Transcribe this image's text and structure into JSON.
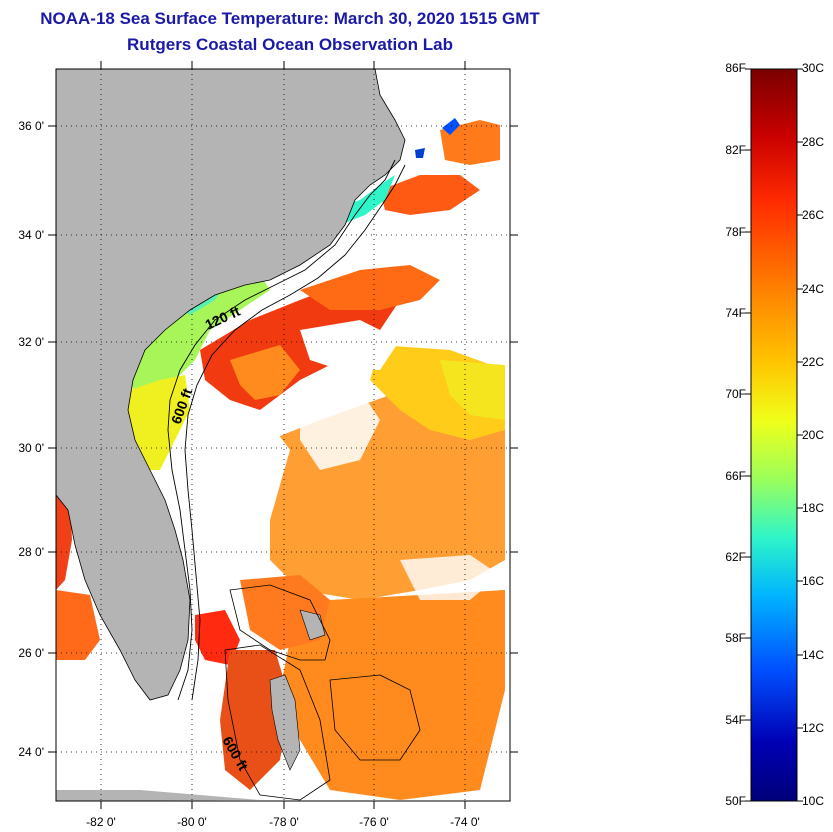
{
  "title": "NOAA-18 Sea Surface Temperature:  March 30, 2020 1515 GMT",
  "subtitle": "Rutgers Coastal Ocean Observation Lab",
  "map": {
    "lat_labels": [
      "36 0'",
      "34 0'",
      "32 0'",
      "30 0'",
      "28 0'",
      "26 0'",
      "24 0'"
    ],
    "lon_labels": [
      "-82 0'",
      "-80 0'",
      "-78 0'",
      "-76 0'",
      "-74 0'"
    ],
    "contour_labels": [
      "120 ft",
      "600 ft",
      "600 ft"
    ],
    "land_color": "#b4b4b4",
    "no_data_color": "#ffffff"
  },
  "colorbar": {
    "fahrenheit_labels": [
      "86F",
      "82F",
      "78F",
      "74F",
      "70F",
      "66F",
      "62F",
      "58F",
      "54F",
      "50F"
    ],
    "celsius_labels": [
      "30C",
      "28C",
      "26C",
      "24C",
      "22C",
      "20C",
      "18C",
      "16C",
      "14C",
      "12C",
      "10C"
    ],
    "colors": [
      "#7a0000",
      "#c80000",
      "#ff2a00",
      "#ff8000",
      "#ffc400",
      "#f0ff1a",
      "#9cff5a",
      "#2ff5c8",
      "#00b4ff",
      "#0050ff",
      "#0000b4",
      "#00007a"
    ]
  }
}
